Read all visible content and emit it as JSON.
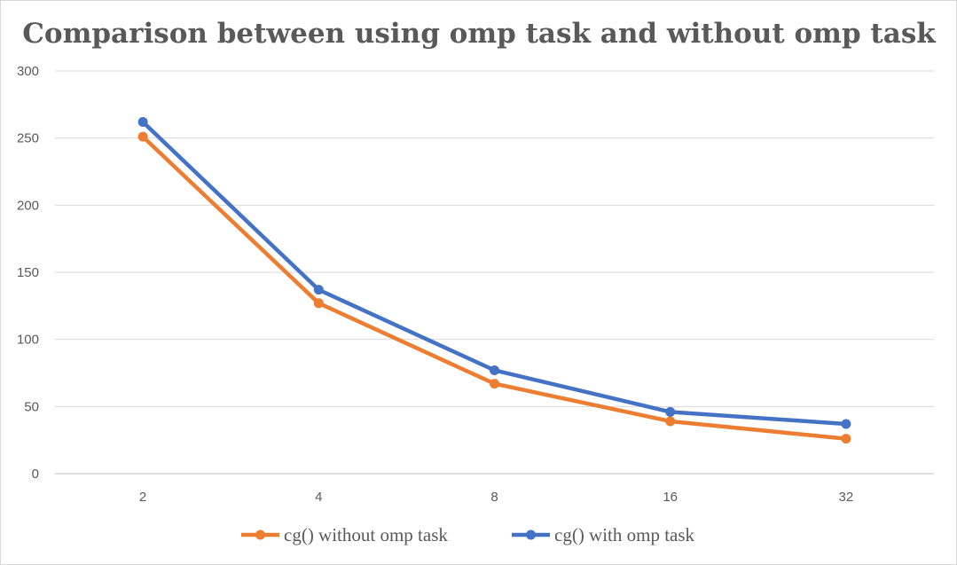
{
  "chart_data": {
    "type": "line",
    "title": "Comparison between using omp task and without omp task",
    "xlabel": "",
    "ylabel": "",
    "categories": [
      "2",
      "4",
      "8",
      "16",
      "32"
    ],
    "y_ticks": [
      "0",
      "50",
      "100",
      "150",
      "200",
      "250",
      "300"
    ],
    "ylim": [
      0,
      300
    ],
    "grid": true,
    "legend_position": "bottom",
    "series": [
      {
        "name": "cg() without omp task",
        "values": [
          251,
          127,
          67,
          39,
          26
        ],
        "color": "#ED7D31"
      },
      {
        "name": "cg() with omp task",
        "values": [
          262,
          137,
          77,
          46,
          37
        ],
        "color": "#4472C4"
      }
    ]
  }
}
